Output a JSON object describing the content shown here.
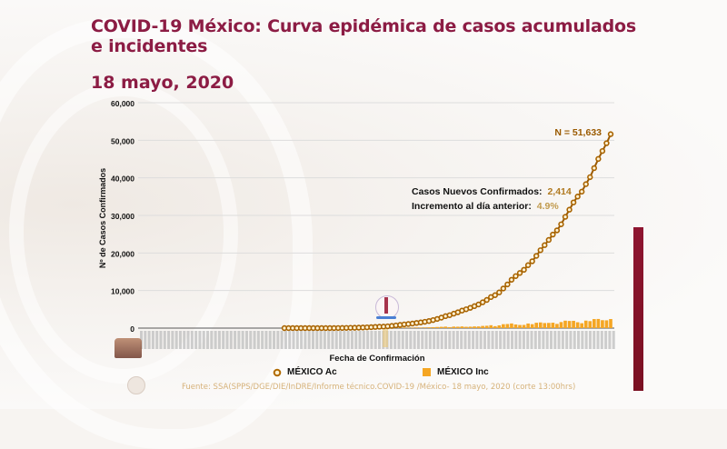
{
  "slide": {
    "title": "COVID-19 México: Curva epidémica de casos acumulados e incidentes",
    "date": "18 mayo, 2020",
    "source": "Fuente: SSA(SPPS/DGE/DIE/InDRE/Informe técnico.COVID-19 /México- 18 mayo, 2020 (corte 13:00hrs)",
    "colors": {
      "title": "#8c1c44",
      "cumulative": "#9a5a00",
      "incident": "#f5a623",
      "accent_bar": "#8e1530"
    }
  },
  "annotations": {
    "total": "N = 51,633",
    "new_cases_label": "Casos Nuevos Confirmados:",
    "new_cases_value": "2,414",
    "increase_label": "Incremento al día anterior:",
    "increase_value": "4.9%"
  },
  "chart_data": {
    "type": "line",
    "title": "COVID-19 México: Curva epidémica de casos acumulados e incidentes",
    "xlabel": "Fecha de Confirmación",
    "ylabel": "Nº de Casos Confirmados",
    "ylim": [
      0,
      60000
    ],
    "yticks": [
      0,
      10000,
      20000,
      30000,
      40000,
      50000,
      60000
    ],
    "ytick_labels": [
      "0",
      "10,000",
      "20,000",
      "30,000",
      "40,000",
      "50,000",
      "60,000"
    ],
    "grid": true,
    "legend": "bottom",
    "x_start": "2020-02-28",
    "x_end": "2020-05-18",
    "series": [
      {
        "name": "MÉXICO Ac",
        "type": "line-markers",
        "values": [
          1,
          4,
          5,
          5,
          5,
          5,
          5,
          6,
          7,
          7,
          7,
          11,
          15,
          26,
          41,
          53,
          82,
          93,
          118,
          164,
          203,
          251,
          316,
          367,
          405,
          475,
          585,
          717,
          848,
          993,
          1094,
          1215,
          1378,
          1510,
          1688,
          1890,
          2143,
          2439,
          2785,
          3181,
          3441,
          3844,
          4219,
          4661,
          5014,
          5399,
          5847,
          6297,
          6875,
          7497,
          8261,
          8772,
          9501,
          10544,
          11633,
          12872,
          13842,
          14677,
          15529,
          16752,
          17799,
          19224,
          20739,
          22088,
          23471,
          24905,
          26025,
          27634,
          29616,
          31522,
          33460,
          35022,
          36327,
          38324,
          40186,
          42595,
          45032,
          47144,
          49219,
          51633
        ]
      },
      {
        "name": "MÉXICO Inc",
        "type": "bar",
        "values": [
          1,
          3,
          1,
          0,
          0,
          0,
          0,
          1,
          1,
          0,
          0,
          4,
          4,
          11,
          15,
          12,
          29,
          11,
          25,
          46,
          39,
          48,
          65,
          51,
          38,
          70,
          110,
          132,
          131,
          145,
          101,
          121,
          163,
          132,
          178,
          202,
          253,
          296,
          346,
          396,
          260,
          403,
          375,
          442,
          353,
          385,
          448,
          450,
          578,
          622,
          764,
          511,
          729,
          1043,
          1089,
          1239,
          970,
          835,
          852,
          1223,
          1047,
          1425,
          1515,
          1349,
          1383,
          1434,
          1120,
          1609,
          1982,
          1906,
          1938,
          1562,
          1305,
          1997,
          1862,
          2409,
          2437,
          2112,
          2075,
          2414
        ]
      }
    ]
  }
}
